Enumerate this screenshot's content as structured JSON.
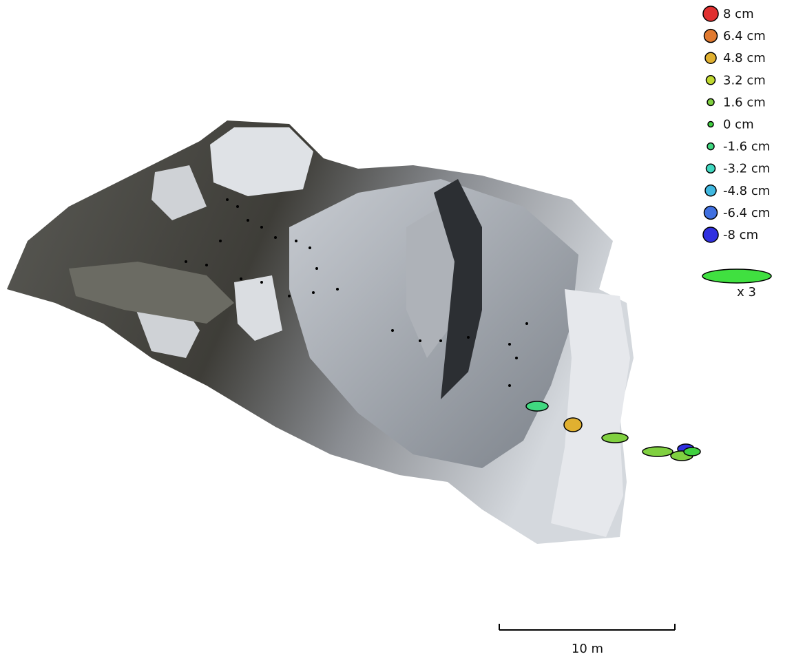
{
  "legend": {
    "items": [
      "8 cm",
      "6.4 cm",
      "4.8 cm",
      "3.2 cm",
      "1.6 cm",
      "0 cm",
      "-1.6 cm",
      "-3.2 cm",
      "-4.8 cm",
      "-6.4 cm",
      "-8 cm"
    ],
    "scale_label": "x 3"
  },
  "scale_bar": {
    "label": "10 m"
  }
}
